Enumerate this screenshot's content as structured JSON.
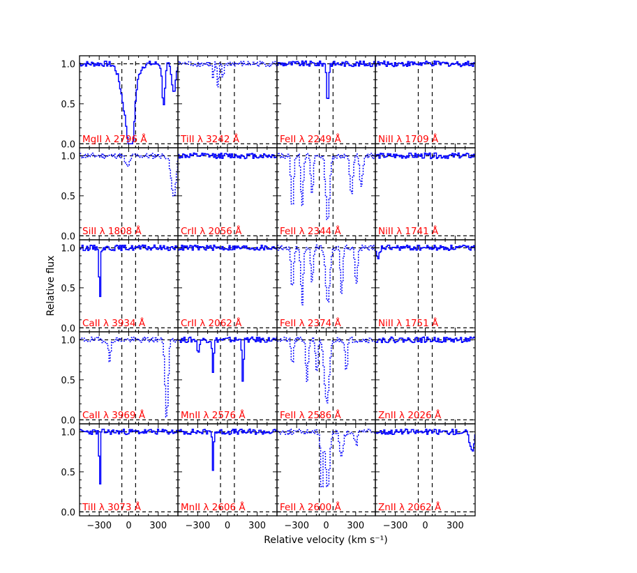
{
  "figure": {
    "xlabel": "Relative velocity (km s⁻¹)",
    "ylabel": "Relative flux"
  },
  "chart_data": {
    "type": "line",
    "layout": "5 rows x 4 columns grid of velocity-profile panels sharing axes",
    "xlim": [
      -500,
      500
    ],
    "ylim": [
      -0.05,
      1.1
    ],
    "xticks": [
      -300,
      0,
      300
    ],
    "yticks": [
      0.0,
      0.5,
      1.0
    ],
    "xticklabels": [
      "−300",
      "0",
      "300"
    ],
    "yticklabels": [
      "0.0",
      "0.5",
      "1.0"
    ],
    "velocity_window_lines": [
      -70,
      70
    ],
    "continuum_level": 1.0,
    "zero_level": 0.0,
    "colors": {
      "spectrum": "#0000ff",
      "label": "#ff0000",
      "guides": "#000000"
    },
    "panels": [
      {
        "label": "MgII λ 2796 Å",
        "absorption": [
          [
            -10,
            0.75,
            60
          ],
          [
            20,
            0.6,
            25
          ],
          [
            350,
            0.5,
            15
          ],
          [
            450,
            0.35,
            20
          ]
        ],
        "dotted": false
      },
      {
        "label": "TiII λ 3242 Å",
        "absorption": [
          [
            -150,
            0.2,
            8
          ],
          [
            -100,
            0.35,
            8
          ],
          [
            -50,
            0.2,
            8
          ]
        ],
        "dotted": true
      },
      {
        "label": "FeII λ 2249 Å",
        "absorption": [
          [
            10,
            0.5,
            10
          ]
        ],
        "dotted": false
      },
      {
        "label": "NiII λ 1709 Å",
        "absorption": [],
        "dotted": false
      },
      {
        "label": "SiII λ 1808 Å",
        "absorption": [
          [
            -20,
            0.15,
            20
          ],
          [
            450,
            0.5,
            25
          ]
        ],
        "dotted": true
      },
      {
        "label": "CrII λ 2056 Å",
        "absorption": [],
        "dotted": false
      },
      {
        "label": "FeII λ 2344 Å",
        "absorption": [
          [
            -350,
            0.7,
            12
          ],
          [
            -250,
            0.6,
            12
          ],
          [
            -150,
            0.5,
            12
          ],
          [
            10,
            0.8,
            20
          ],
          [
            250,
            0.5,
            15
          ],
          [
            350,
            0.4,
            15
          ]
        ],
        "dotted": true
      },
      {
        "label": "NiII λ 1741 Å",
        "absorption": [],
        "dotted": false
      },
      {
        "label": "CaII λ 3934 Å",
        "absorption": [
          [
            -300,
            0.8,
            6
          ]
        ],
        "dotted": false
      },
      {
        "label": "CrII λ 2062 Å",
        "absorption": [],
        "dotted": false
      },
      {
        "label": "FeII λ 2374 Å",
        "absorption": [
          [
            -350,
            0.5,
            12
          ],
          [
            -250,
            0.7,
            12
          ],
          [
            -150,
            0.4,
            12
          ],
          [
            10,
            0.7,
            20
          ],
          [
            150,
            0.6,
            12
          ],
          [
            300,
            0.5,
            12
          ]
        ],
        "dotted": true
      },
      {
        "label": "NiII λ 1751 Å",
        "absorption": [
          [
            -480,
            0.15,
            15
          ]
        ],
        "dotted": false
      },
      {
        "label": "CaII λ 3969 Å",
        "absorption": [
          [
            -200,
            0.3,
            10
          ],
          [
            380,
            1.0,
            15
          ]
        ],
        "dotted": true
      },
      {
        "label": "MnII λ 2576 Å",
        "absorption": [
          [
            -300,
            0.2,
            8
          ],
          [
            -150,
            0.4,
            8
          ],
          [
            150,
            0.5,
            8
          ]
        ],
        "dotted": false
      },
      {
        "label": "FeII λ 2586 Å",
        "absorption": [
          [
            -350,
            0.3,
            12
          ],
          [
            -200,
            0.5,
            12
          ],
          [
            -100,
            0.4,
            12
          ],
          [
            0,
            0.8,
            25
          ],
          [
            200,
            0.4,
            10
          ]
        ],
        "dotted": true
      },
      {
        "label": "ZnII λ 2026 Å",
        "absorption": [],
        "dotted": false
      },
      {
        "label": "TiII λ 3073 Å",
        "absorption": [
          [
            -300,
            0.8,
            6
          ]
        ],
        "dotted": false
      },
      {
        "label": "MnII λ 2606 Å",
        "absorption": [
          [
            -150,
            0.5,
            6
          ]
        ],
        "dotted": false
      },
      {
        "label": "FeII λ 2600 Å",
        "absorption": [
          [
            -50,
            0.8,
            10
          ],
          [
            10,
            0.7,
            20
          ],
          [
            150,
            0.3,
            20
          ],
          [
            300,
            0.15,
            15
          ]
        ],
        "dotted": true
      },
      {
        "label": "ZnII λ 2062 Å",
        "absorption": [
          [
            460,
            0.25,
            20
          ]
        ],
        "dotted": false
      }
    ]
  }
}
